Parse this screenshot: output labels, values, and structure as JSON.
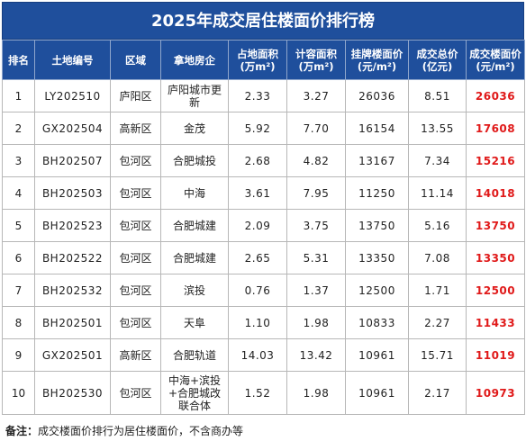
{
  "title": "2025年成交居住楼面价排行榜",
  "headers": [
    {
      "line1": "排名",
      "line2": ""
    },
    {
      "line1": "土地编号",
      "line2": ""
    },
    {
      "line1": "区域",
      "line2": ""
    },
    {
      "line1": "拿地房企",
      "line2": ""
    },
    {
      "line1": "占地面积",
      "line2": "(万m²)"
    },
    {
      "line1": "计容面积",
      "line2": "(万m²)"
    },
    {
      "line1": "挂牌楼面价",
      "line2": "(元/m²)"
    },
    {
      "line1": "成交总价",
      "line2": "(亿元)"
    },
    {
      "line1": "成交楼面价",
      "line2": "(元/m²)"
    }
  ],
  "rows": [
    {
      "rank": "1",
      "code": "LY202510",
      "district": "庐阳区",
      "developer": "庐阳城市更新",
      "site_area": "2.33",
      "gfa": "3.27",
      "list_price": "26036",
      "total": "8.51",
      "deal_price": "26036"
    },
    {
      "rank": "2",
      "code": "GX202504",
      "district": "高新区",
      "developer": "金茂",
      "site_area": "5.92",
      "gfa": "7.70",
      "list_price": "16154",
      "total": "13.55",
      "deal_price": "17608"
    },
    {
      "rank": "3",
      "code": "BH202507",
      "district": "包河区",
      "developer": "合肥城投",
      "site_area": "2.68",
      "gfa": "4.82",
      "list_price": "13167",
      "total": "7.34",
      "deal_price": "15216"
    },
    {
      "rank": "4",
      "code": "BH202503",
      "district": "包河区",
      "developer": "中海",
      "site_area": "3.61",
      "gfa": "7.95",
      "list_price": "11250",
      "total": "11.14",
      "deal_price": "14018"
    },
    {
      "rank": "5",
      "code": "BH202523",
      "district": "包河区",
      "developer": "合肥城建",
      "site_area": "2.09",
      "gfa": "3.75",
      "list_price": "13750",
      "total": "5.16",
      "deal_price": "13750"
    },
    {
      "rank": "6",
      "code": "BH202522",
      "district": "包河区",
      "developer": "合肥城建",
      "site_area": "2.65",
      "gfa": "5.31",
      "list_price": "13350",
      "total": "7.08",
      "deal_price": "13350"
    },
    {
      "rank": "7",
      "code": "BH202532",
      "district": "包河区",
      "developer": "滨投",
      "site_area": "0.76",
      "gfa": "1.37",
      "list_price": "12500",
      "total": "1.71",
      "deal_price": "12500"
    },
    {
      "rank": "8",
      "code": "BH202501",
      "district": "包河区",
      "developer": "天阜",
      "site_area": "1.10",
      "gfa": "1.98",
      "list_price": "10833",
      "total": "2.27",
      "deal_price": "11433"
    },
    {
      "rank": "9",
      "code": "GX202501",
      "district": "高新区",
      "developer": "合肥轨道",
      "site_area": "14.03",
      "gfa": "13.42",
      "list_price": "10961",
      "total": "15.71",
      "deal_price": "11019"
    },
    {
      "rank": "10",
      "code": "BH202530",
      "district": "包河区",
      "developer": "中海+滨投+合肥城改联合体",
      "site_area": "1.52",
      "gfa": "1.98",
      "list_price": "10961",
      "total": "2.17",
      "deal_price": "10973"
    }
  ],
  "note": {
    "label": "备注：",
    "text": "成交楼面价排行为居住楼面价，不含商办等"
  },
  "colors": {
    "header_bg": "#1f4f9c",
    "highlight": "#e01919"
  }
}
